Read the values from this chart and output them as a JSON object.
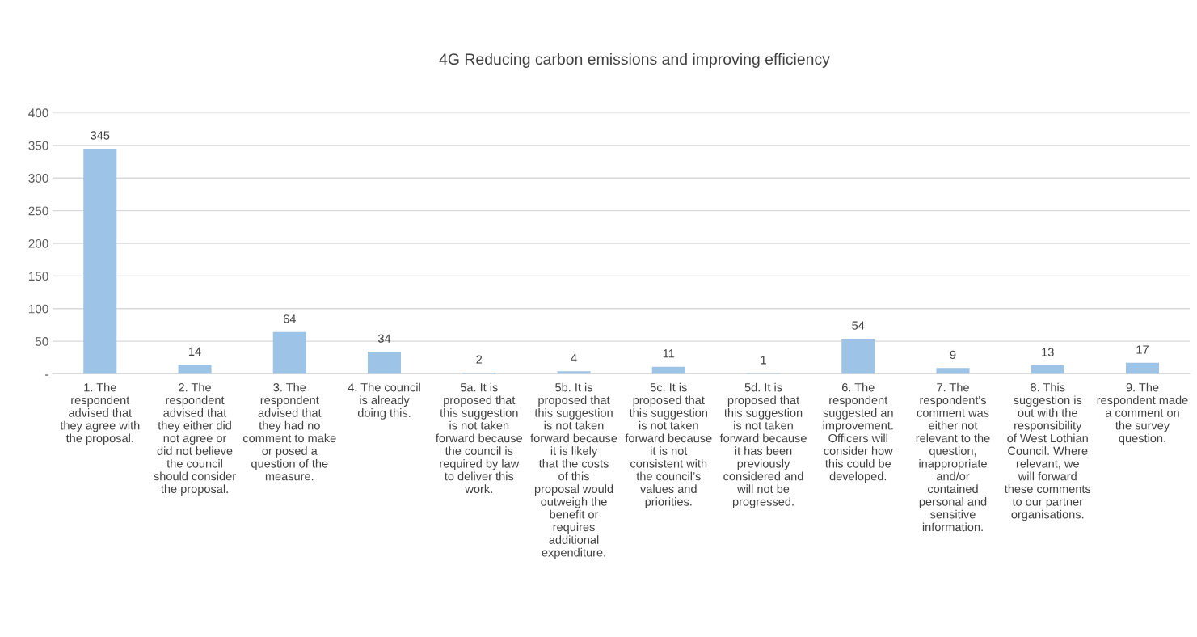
{
  "chart_data": {
    "type": "bar",
    "title": "4G Reducing carbon emissions and improving efficiency",
    "categories": [
      "1.  The respondent advised that they agree with the proposal.",
      "2.  The respondent advised that they either did not agree or did not believe the council should consider the proposal.",
      "3.  The respondent advised that they had no comment to make or posed a question of the measure.",
      "4.  The council is already doing this.",
      "5a.  It is proposed that this suggestion is not taken forward because the council is required by law to deliver this work.",
      "5b.  It is proposed that this suggestion is not taken forward because it is likely that the costs of this proposal would outweigh the benefit or requires additional expenditure.",
      "5c.  It is proposed that this suggestion is not taken forward because it is not consistent with the council’s values and priorities.",
      "5d.  It is proposed that this suggestion is not taken forward because it has been previously considered and will not be progressed.",
      "6.  The respondent suggested an improvement. Officers will consider how this could be developed.",
      "7.  The respondent's comment was either not relevant to the question, inappropriate and/or contained personal and sensitive information.",
      "8.  This suggestion is out with the responsibility of West Lothian Council.  Where relevant, we will forward these comments to our partner organisations.",
      "9. The respondent made a comment on the survey question."
    ],
    "values": [
      345,
      14,
      64,
      34,
      2,
      4,
      11,
      1,
      54,
      9,
      13,
      17
    ],
    "color": "#9dc3e6",
    "ylim": [
      0,
      400
    ],
    "yticks": [
      {
        "value": 0,
        "label": "-"
      },
      50,
      100,
      150,
      200,
      250,
      300,
      350,
      400
    ],
    "grid": "y",
    "data_labels": true
  }
}
